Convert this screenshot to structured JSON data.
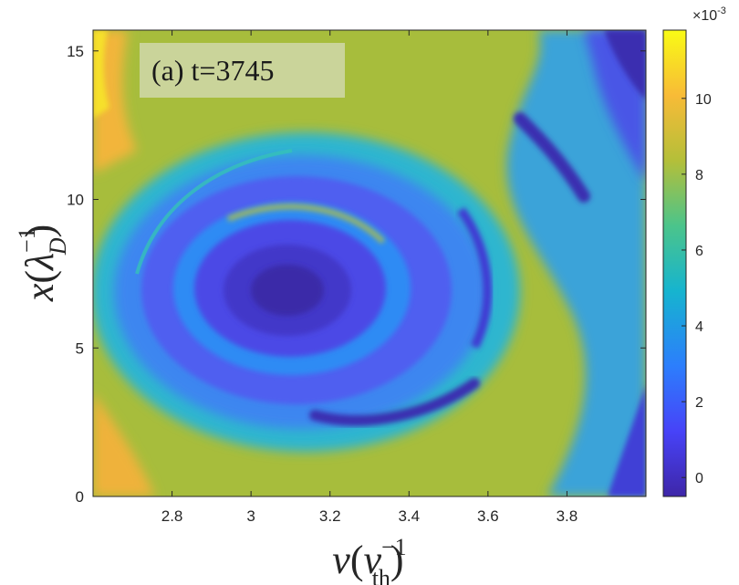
{
  "chart_data": {
    "type": "heatmap",
    "annotation": "(a) t=3745",
    "xlabel": {
      "main": "v",
      "open": "(",
      "base": "v",
      "sup": "−1",
      "sub": "th",
      "close": ")"
    },
    "ylabel": {
      "main": "x",
      "open": "(",
      "base": "λ",
      "sup": "−1",
      "sub": "D",
      "close": ")"
    },
    "xlim": [
      2.6,
      4.0
    ],
    "ylim": [
      0,
      15.7
    ],
    "xticks": [
      "2.8",
      "3",
      "3.2",
      "3.4",
      "3.6",
      "3.8"
    ],
    "xtick_values": [
      2.8,
      3.0,
      3.2,
      3.4,
      3.6,
      3.8
    ],
    "yticks": [
      "0",
      "5",
      "10",
      "15"
    ],
    "ytick_values": [
      0,
      5,
      10,
      15
    ],
    "colorbar": {
      "exponent_label": "×10",
      "exponent": "-3",
      "range": [
        -0.5,
        11.8
      ],
      "ticks": [
        "0",
        "2",
        "4",
        "6",
        "8",
        "10"
      ],
      "tick_values": [
        0,
        2,
        4,
        6,
        8,
        10
      ],
      "colormap": "parula",
      "colors": [
        "#3e26a8",
        "#4743f8",
        "#2c7efc",
        "#16b4cf",
        "#4bc48b",
        "#b4bf39",
        "#f8bb37",
        "#f9fb15"
      ]
    },
    "description_values": {
      "background_level": 8,
      "vortex_core_level": 1,
      "vortex_center": {
        "v": 3.1,
        "x": 6.9
      }
    }
  }
}
